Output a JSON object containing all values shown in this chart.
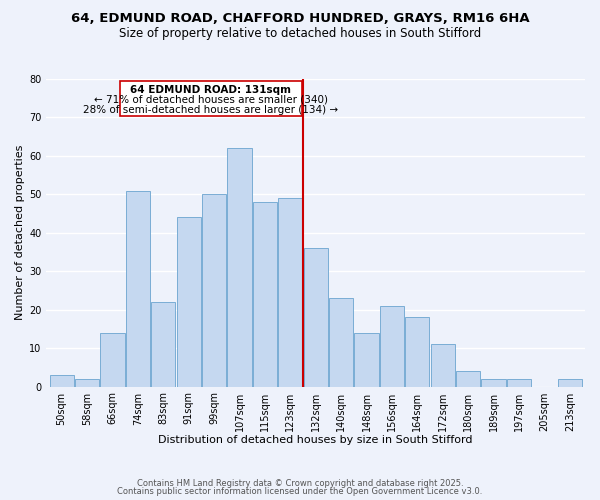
{
  "title_line1": "64, EDMUND ROAD, CHAFFORD HUNDRED, GRAYS, RM16 6HA",
  "title_line2": "Size of property relative to detached houses in South Stifford",
  "xlabel": "Distribution of detached houses by size in South Stifford",
  "ylabel": "Number of detached properties",
  "bar_labels": [
    "50sqm",
    "58sqm",
    "66sqm",
    "74sqm",
    "83sqm",
    "91sqm",
    "99sqm",
    "107sqm",
    "115sqm",
    "123sqm",
    "132sqm",
    "140sqm",
    "148sqm",
    "156sqm",
    "164sqm",
    "172sqm",
    "180sqm",
    "189sqm",
    "197sqm",
    "205sqm",
    "213sqm"
  ],
  "bar_heights": [
    3,
    2,
    14,
    51,
    22,
    44,
    50,
    62,
    48,
    49,
    36,
    23,
    14,
    21,
    18,
    11,
    4,
    2,
    2,
    0,
    2
  ],
  "bar_color": "#c5d8f0",
  "bar_edge_color": "#7aadd4",
  "vline_index": 10,
  "highlight_label": "64 EDMUND ROAD: 131sqm",
  "highlight_line1": "← 71% of detached houses are smaller (340)",
  "highlight_line2": "28% of semi-detached houses are larger (134) →",
  "annotation_box_color": "#ffffff",
  "annotation_box_edge": "#cc0000",
  "vline_color": "#cc0000",
  "ylim": [
    0,
    80
  ],
  "yticks": [
    0,
    10,
    20,
    30,
    40,
    50,
    60,
    70,
    80
  ],
  "background_color": "#eef2fb",
  "grid_color": "#ffffff",
  "footer_line1": "Contains HM Land Registry data © Crown copyright and database right 2025.",
  "footer_line2": "Contains public sector information licensed under the Open Government Licence v3.0.",
  "title_fontsize": 9.5,
  "subtitle_fontsize": 8.5,
  "axis_label_fontsize": 8,
  "tick_fontsize": 7,
  "annotation_fontsize": 7.5,
  "footer_fontsize": 6
}
